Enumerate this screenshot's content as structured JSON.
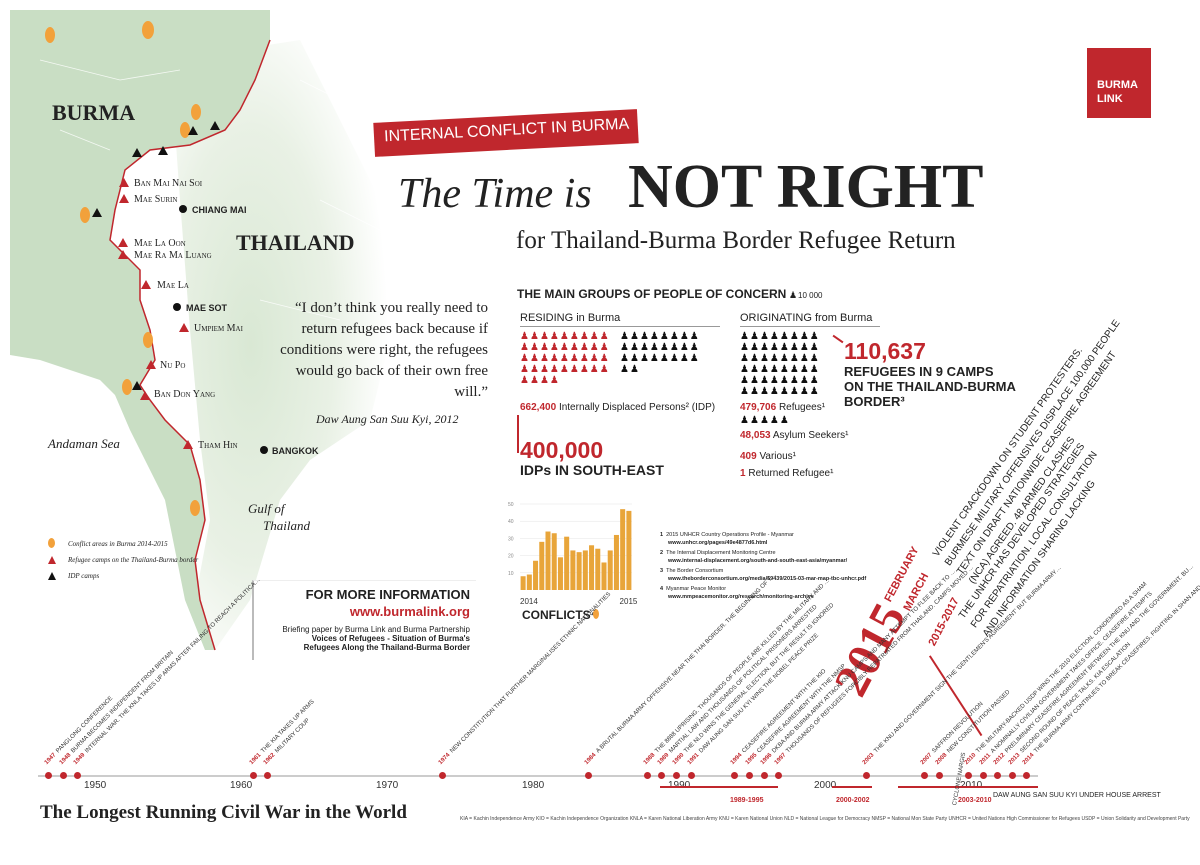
{
  "map": {
    "country_burma": "BURMA",
    "country_thailand": "THAILAND",
    "sea_andaman": "Andaman Sea",
    "gulf_line1": "Gulf of",
    "gulf_line2": "Thailand",
    "camps": [
      "Ban Mai Nai Soi",
      "Mae Surin",
      "Mae La Oon",
      "Mae Ra Ma Luang",
      "Mae La",
      "Umpiem Mai",
      "Nu Po",
      "Ban Don Yang",
      "Tham Hin"
    ],
    "cities": [
      "CHIANG MAI",
      "MAE SOT",
      "BANGKOK"
    ],
    "legend": {
      "conflict": "Conflict areas in Burma 2014-2015",
      "camps": "Refugee camps on the Thailand-Burma border",
      "idp": "IDP camps"
    }
  },
  "logo": {
    "line1": "BURMA",
    "line2": "LINK"
  },
  "banner": "INTERNAL CONFLICT IN BURMA",
  "title": {
    "part1": "The Time is",
    "part2": "NOT RIGHT",
    "subtitle": "for Thailand-Burma Border Refugee Return"
  },
  "quote": {
    "text": "“I don’t think you really need to return refugees back because if conditions were right, the refugees would go back of their own free will.”",
    "author": "Daw Aung San Suu Kyi, 2012"
  },
  "groups": {
    "heading": "THE MAIN GROUPS OF PEOPLE OF CONCERN",
    "unit": "10 000",
    "residing_head": "RESIDING in Burma",
    "originating_head": "ORIGINATING from Burma",
    "idp_value": "662,400",
    "idp_label": "Internally Displaced Persons² (IDP)",
    "idp_big": "400,000",
    "idp_big_label": "IDPs IN SOUTH-EAST",
    "refugees_value": "479,706",
    "refugees_label": "Refugees¹",
    "asylum_value": "48,053",
    "asylum_label": "Asylum Seekers¹",
    "various_value": "409",
    "various_label": "Various¹",
    "returned_value": "1",
    "returned_label": "Returned Refugee¹",
    "camp_big": "110,637",
    "camp_line1": "REFUGEES IN 9 CAMPS",
    "camp_line2": "ON THE THAILAND-BURMA",
    "camp_line3": "BORDER³"
  },
  "conflicts_chart": {
    "label": "CONFLICTS⁴",
    "y_ticks": [
      "50",
      "40",
      "30",
      "20",
      "10"
    ],
    "x_ticks": [
      "2014",
      "2015"
    ]
  },
  "chart_data": {
    "type": "bar",
    "title": "CONFLICTS⁴",
    "xlabel": "",
    "ylabel": "",
    "ylim": [
      0,
      50
    ],
    "categories": [
      "2014",
      "",
      "",
      "",
      "",
      "",
      "",
      "",
      "",
      "",
      "",
      "",
      "",
      "",
      "",
      "",
      "",
      "2015"
    ],
    "values": [
      8,
      9,
      17,
      28,
      34,
      33,
      19,
      31,
      23,
      22,
      23,
      26,
      24,
      16,
      23,
      32,
      47,
      46
    ]
  },
  "sources": [
    {
      "n": "1",
      "title": "2015 UNHCR Country Operations Profile - Myanmar",
      "url": "www.unhcr.org/pages/49e4877d6.html"
    },
    {
      "n": "2",
      "title": "The Internal Displacement Monitoring Centre",
      "url": "www.internal-displacement.org/south-and-south-east-asia/myanmar/"
    },
    {
      "n": "3",
      "title": "The Border Consortium",
      "url": "www.theborderconsortium.org/media/59439/2015-03-mar-map-tbc-unhcr.pdf"
    },
    {
      "n": "4",
      "title": "Myanmar Peace Monitor",
      "url": "www.mmpeacemonitor.org/research/monitoring-archive"
    }
  ],
  "info": {
    "heading": "FOR MORE INFORMATION",
    "url": "www.burmalink.org",
    "line1": "Briefing paper by Burma Link and Burma Partnership",
    "line2": "Voices of Refugees - Situation of Burma's",
    "line3": "Refugees Along the Thailand-Burma Border"
  },
  "diagonal": {
    "year": "2015",
    "feb": "FEBRUARY",
    "mar": "MARCH",
    "range": "2015-2017",
    "text1": "VIOLENT CRACKDOWN ON STUDENT PROTESTERS.",
    "text2": "BURMESE MILITARY OFFENSIVES DISPLACE 100,000 PEOPLE",
    "text3": "TEXT ON DRAFT NATIONWIDE CEASEFIRE AGREEMENT",
    "text4": "(NCA) AGREED. 48 ARMED CLASHES",
    "text5": "THE UNHCR HAS DEVELOPED STRATEGIES",
    "text6": "FOR REPATRIATION. LOCAL CONSULTATION",
    "text7": "AND INFORMATION SHARING LACKING"
  },
  "timeline": {
    "heading": "The Longest Running Civil War in the World",
    "axis_labels": [
      "1950",
      "1960",
      "1970",
      "1980",
      "1990",
      "2000",
      "2010"
    ],
    "ranges": [
      "1989-1995",
      "2000-2002",
      "2003-2010"
    ],
    "cyclone": "CYCLONE NARGIS",
    "house_arrest": "DAW AUNG SAN SUU KYI UNDER HOUSE ARREST",
    "events": [
      {
        "year": "1947",
        "text": "PANGLONG CONFERENCE"
      },
      {
        "year": "1948",
        "text": "BURMA BECOMES INDEPENDENT FROM BRITAIN"
      },
      {
        "year": "1949",
        "text": "INTERNAL WAR. THE KNLA TAKES UP ARMS AFTER FAILING TO REACH A POLITICAL AGREEMENT"
      },
      {
        "year": "1961",
        "text": "THE KIA TAKES UP ARMS"
      },
      {
        "year": "1962",
        "text": "MILITARY COUP"
      },
      {
        "year": "1974",
        "text": "NEW CONSTITUTION THAT FURTHER MARGINALISES ETHNIC NATIONALITIES"
      },
      {
        "year": "1984",
        "text": "A BRUTAL BURMA ARMY OFFENSIVE NEAR THE THAI BORDER. THE BEGINNING OF THE ONGOING REFUGEE OUTFLOW FROM BURMA INTO THAILAND"
      },
      {
        "year": "1988",
        "text": "THE 8888 UPRISING. THOUSANDS OF PEOPLE ARE KILLED BY THE MILITARY AND THE POLICE"
      },
      {
        "year": "1990",
        "text": "THE NLD WINS THE GENERAL ELECTION, BUT THE RESULT IS IGNORED"
      },
      {
        "year": "1989",
        "text": "MARTIAL LAW AND THOUSANDS OF POLITICAL PRISONERS ARRESTED"
      },
      {
        "year": "1991",
        "text": "DAW AUNG SAN SUU KYI WINS THE NOBEL PEACE PRIZE"
      },
      {
        "year": "1994",
        "text": "CEASEFIRE AGREEMENT WITH THE KIO"
      },
      {
        "year": "1995",
        "text": "CEASEFIRE AGREEMENT WITH THE NMSP"
      },
      {
        "year": "1996",
        "text": "DKBA AND BURMA ARMY ATTACK KNU CAMPS AND MANY ATTEMPT TO FLEE BACK TO THAILAND"
      },
      {
        "year": "1997",
        "text": "THOUSANDS OF REFUGEES FORCIBLY REPATRIATED FROM THAILAND. CAMPS MOVED FURTHER INTO THAILAND"
      },
      {
        "year": "2003",
        "text": "THE KNU AND GOVERNMENT SIGN THE 'GENTLEMEN'S AGREEMENT' BUT BURMA ARMY CONTINUES MILITARY OFFENSIVES"
      },
      {
        "year": "2007",
        "text": "SAFFRON REVOLUTION"
      },
      {
        "year": "2008",
        "text": "NEW CONSTITUTION PASSED"
      },
      {
        "year": "2010",
        "text": "THE MILITARY-BACKED USDP WINS THE 2010 ELECTION. CONDEMNED AS A SHAM"
      },
      {
        "year": "2011",
        "text": "A NOMINALLY CIVILIAN GOVERNMENT TAKES OFFICE. CEASEFIRE ATTEMPTS"
      },
      {
        "year": "2012",
        "text": "PRELIMINARY CEASEFIRE AGREEMENT BETWEEN THE KNU AND THE GOVERNMENT. BURMA ARMY CONTINUES FIGHTING"
      },
      {
        "year": "2013",
        "text": "SECOND ROUND OF PEACE TALKS. KIA ESCALATION"
      },
      {
        "year": "2014",
        "text": "THE BURMA ARMY CONTINUES TO BREAK CEASEFIRES. FIGHTING IN SHAN AND KACHIN STATES"
      }
    ]
  },
  "abbreviations": "KIA = Kachin Independence Army   KIO = Kachin Independence Organization   KNLA = Karen National Liberation Army   KNU = Karen National Union   NLD = National League for Democracy   NMSP = National Mon State Party   UNHCR = United Nations High Commissioner for Refugees   USDP = Union Solidarity and Development Party",
  "colors": {
    "accent": "#c0272d",
    "map_land": "#c9dec4",
    "bar": "#e8a53a",
    "text": "#222222"
  }
}
